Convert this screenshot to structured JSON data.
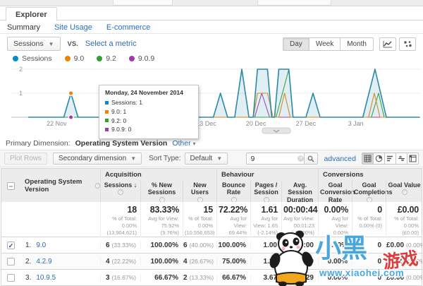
{
  "tab": {
    "label": "Explorer"
  },
  "subnav": {
    "items": [
      "Summary",
      "Site Usage",
      "E-commerce"
    ],
    "active": "Summary"
  },
  "metric_bar": {
    "metric": "Sessions",
    "vs": "VS.",
    "select_metric": "Select a metric",
    "granularity": [
      "Day",
      "Week",
      "Month"
    ],
    "active_granularity": "Day"
  },
  "legend": [
    {
      "label": "Sessions",
      "color": "#058dc7"
    },
    {
      "label": "9.0",
      "color": "#ef8200"
    },
    {
      "label": "9.2",
      "color": "#33a12e"
    },
    {
      "label": "9.0.9",
      "color": "#a43aa8"
    }
  ],
  "tooltip": {
    "date": "Monday, 24 November 2014",
    "items": [
      {
        "label": "Sessions: 1",
        "color": "#058dc7"
      },
      {
        "label": "9.0: 1",
        "color": "#ef8200"
      },
      {
        "label": "9.2: 0",
        "color": "#33a12e"
      },
      {
        "label": "9.0.9: 0",
        "color": "#a43aa8"
      }
    ]
  },
  "chart_data": {
    "type": "area",
    "title": "Sessions by day",
    "x_unit": "days from 18 Nov 2014",
    "ylim": [
      0,
      2.3
    ],
    "yticks": [
      1,
      2
    ],
    "grid": true,
    "xticks": [
      {
        "day": 4,
        "label": "22 Nov"
      },
      {
        "day": 18,
        "label": "6 Dec"
      },
      {
        "day": 25,
        "label": "13 Dec"
      },
      {
        "day": 32,
        "label": "20 Dec"
      },
      {
        "day": 39,
        "label": "27 Dec"
      },
      {
        "day": 46,
        "label": "3 Jan"
      }
    ],
    "series": [
      {
        "name": "9.0.9",
        "color": "#a43aa8",
        "fill": "none",
        "points": [
          [
            0,
            0
          ],
          [
            31.8,
            0
          ],
          [
            32.8,
            1
          ],
          [
            33.9,
            0
          ],
          [
            55,
            0
          ]
        ]
      },
      {
        "name": "9.2",
        "color": "#33a12e",
        "fill": "none",
        "points": [
          [
            0,
            0
          ],
          [
            34.8,
            0
          ],
          [
            36.6,
            2
          ],
          [
            37.2,
            0
          ],
          [
            48.2,
            0
          ],
          [
            49.2,
            1
          ],
          [
            50,
            0
          ],
          [
            55,
            0
          ]
        ]
      },
      {
        "name": "9.0",
        "color": "#ef8200",
        "fill": "none",
        "points": [
          [
            0,
            0
          ],
          [
            5,
            0
          ],
          [
            6,
            1
          ],
          [
            7,
            0
          ],
          [
            31.6,
            0
          ],
          [
            32.2,
            1
          ],
          [
            33.6,
            1
          ],
          [
            34.4,
            0
          ],
          [
            35.2,
            0
          ],
          [
            36,
            1
          ],
          [
            36.8,
            0
          ],
          [
            47.8,
            0
          ],
          [
            48.6,
            1
          ],
          [
            49.4,
            0
          ],
          [
            55,
            0
          ]
        ]
      },
      {
        "name": "Sessions",
        "color": "#2b8aa8",
        "fill": "rgba(91,169,199,0.18)",
        "points": [
          [
            0,
            0
          ],
          [
            5,
            0
          ],
          [
            6,
            1
          ],
          [
            7,
            0
          ],
          [
            16,
            0
          ],
          [
            17,
            1
          ],
          [
            18,
            0
          ],
          [
            26,
            0
          ],
          [
            27,
            1
          ],
          [
            28,
            0
          ],
          [
            29,
            0
          ],
          [
            30,
            2
          ],
          [
            31,
            0
          ],
          [
            31.6,
            0
          ],
          [
            32.2,
            2
          ],
          [
            33.6,
            2
          ],
          [
            34.2,
            0
          ],
          [
            34.6,
            0
          ],
          [
            35.2,
            2
          ],
          [
            36.6,
            2
          ],
          [
            37.2,
            0
          ],
          [
            39,
            0
          ],
          [
            40,
            1
          ],
          [
            41,
            0
          ],
          [
            47,
            0
          ],
          [
            48.7,
            2
          ],
          [
            50.3,
            0
          ],
          [
            55,
            0
          ]
        ]
      }
    ],
    "markers": [
      {
        "day": 6,
        "value": 1,
        "color": "#ef8200"
      },
      {
        "day": 6,
        "value": 0,
        "color": "#a43aa8"
      }
    ]
  },
  "primary_dimension": {
    "label": "Primary Dimension:",
    "value": "Operating System Version",
    "other": "Other"
  },
  "toolbar": {
    "plot_rows": "Plot Rows",
    "secondary_dimension": "Secondary dimension",
    "sort_type_label": "Sort Type:",
    "sort_type": "Default",
    "search_value": "9",
    "advanced": "advanced"
  },
  "table": {
    "dimension_header": "Operating System Version",
    "groups": [
      "Acquisition",
      "Behaviour",
      "Conversions"
    ],
    "columns": [
      "Sessions",
      "% New Sessions",
      "New Users",
      "Bounce Rate",
      "Pages / Session",
      "Avg. Session Duration",
      "Goal Conversion Rate",
      "Goal Completions",
      "Goal Value"
    ],
    "totals": {
      "values": [
        "18",
        "83.33%",
        "15",
        "72.22%",
        "1.61",
        "00:00:44",
        "0.00%",
        "0",
        "£0.00"
      ],
      "subs": [
        "% of Total: 0.00% (13,904,621)",
        "Avg for View: 75.92% (9.76%)",
        "% of Total: 0.00% (10,556,653)",
        "Avg for View: 69.44% (4.01%)",
        "Avg for View: 1.65 (-2.14%)",
        "Avg for View: 00:01:23 (-47.00%)",
        "Avg for View: 0.00% (0.00%)",
        "% of Total: 0.00% (0)",
        "% of Total: 0.00% (£0.00)"
      ]
    },
    "rows": [
      {
        "checked": true,
        "num": "1.",
        "name": "9.0",
        "cells": [
          [
            "6",
            "(33.33%)"
          ],
          [
            "100.00%",
            ""
          ],
          [
            "6",
            "(40.00%)"
          ],
          [
            "100.00%",
            ""
          ],
          [
            "1.00",
            ""
          ],
          [
            "00:00:00",
            ""
          ],
          [
            "0.00%",
            ""
          ],
          [
            "0",
            ""
          ],
          [
            "£0.00",
            "(0.00%)"
          ]
        ]
      },
      {
        "checked": false,
        "num": "2.",
        "name": "4.2.9",
        "cells": [
          [
            "4",
            "(22.22%)"
          ],
          [
            "100.00%",
            ""
          ],
          [
            "4",
            "(26.67%)"
          ],
          [
            "75.00%",
            ""
          ],
          [
            "1.25",
            ""
          ],
          [
            "00:00:30",
            ""
          ],
          [
            "0.00%",
            ""
          ],
          [
            "0",
            ""
          ],
          [
            "£0.00",
            "(0.00%)"
          ]
        ]
      },
      {
        "checked": false,
        "num": "3.",
        "name": "10.9.5",
        "cells": [
          [
            "3",
            "(16.67%)"
          ],
          [
            "66.67%",
            ""
          ],
          [
            "2",
            "(13.33%)"
          ],
          [
            "66.67%",
            ""
          ],
          [
            "3.67",
            ""
          ],
          [
            "00:02:29",
            ""
          ],
          [
            "0.00%",
            ""
          ],
          [
            "0",
            ""
          ],
          [
            "£0.00",
            "(0.00%)"
          ]
        ]
      }
    ]
  },
  "watermark": {
    "title": "小黑",
    "title2": "游戏",
    "url": "www.xiaohei.com"
  }
}
